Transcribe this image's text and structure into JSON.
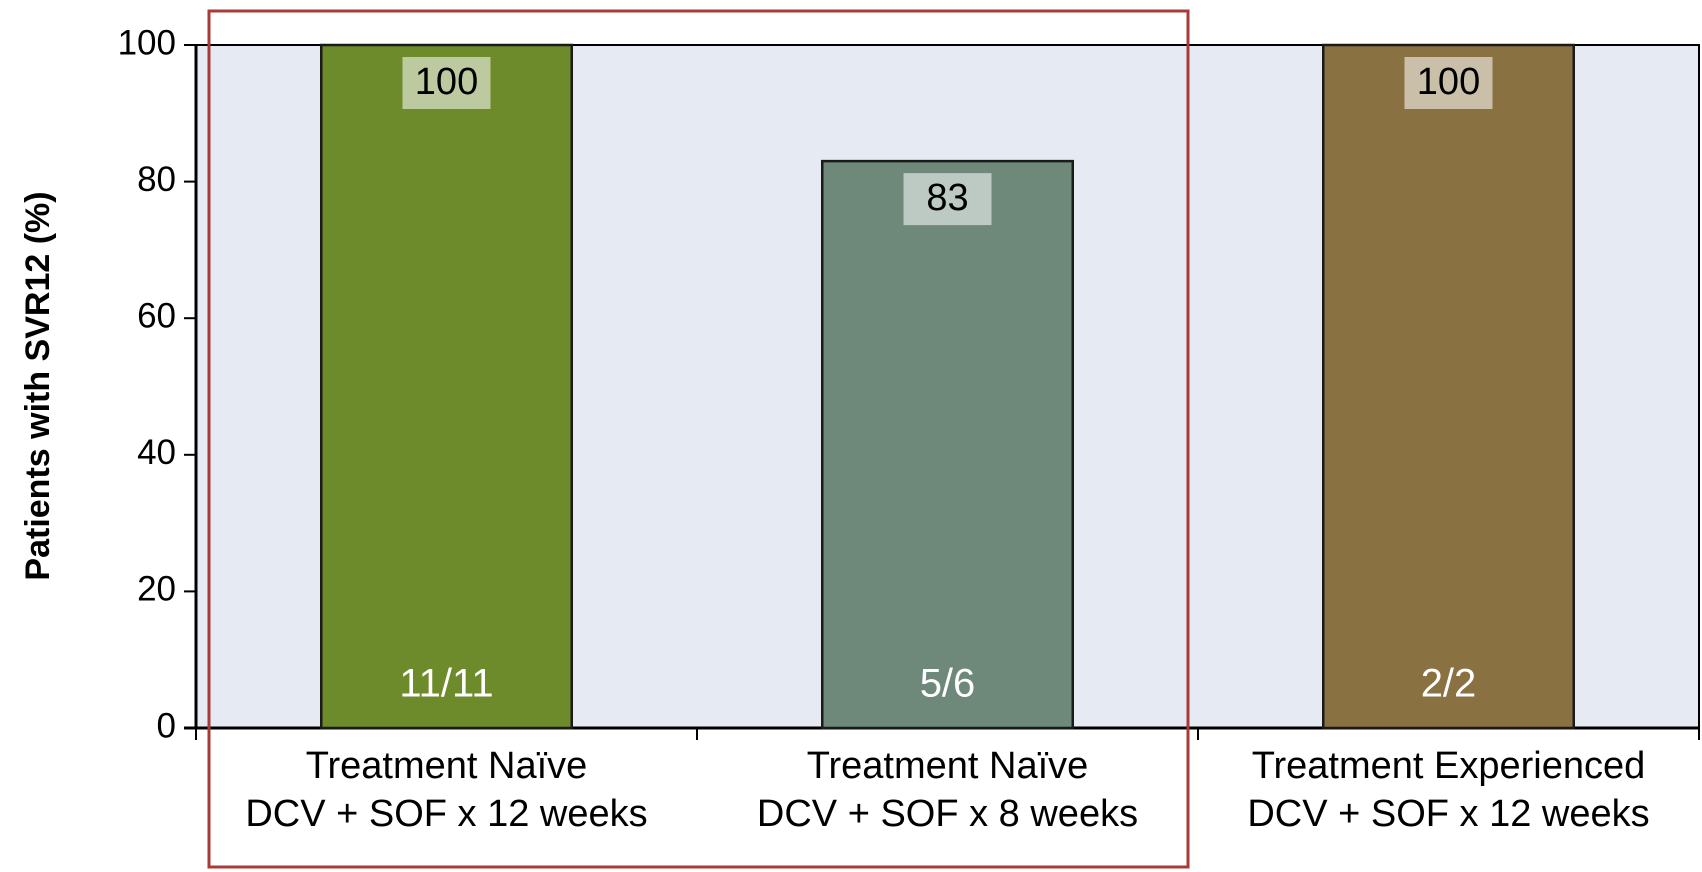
{
  "chart_data": {
    "type": "bar",
    "y_label": "Patients with SVR12 (%)",
    "categories": [
      [
        "Treatment Naïve",
        "DCV + SOF x 12 weeks"
      ],
      [
        "Treatment Naïve",
        "DCV + SOF x 8 weeks"
      ],
      [
        "Treatment Experienced",
        "DCV + SOF x 12 weeks"
      ]
    ],
    "values": [
      100,
      83,
      100
    ],
    "counts": [
      "11/11",
      "5/6",
      "2/2"
    ],
    "colors": [
      "#6e8b2b",
      "#6e887a",
      "#8a7142"
    ],
    "ylim": [
      0,
      100
    ],
    "yticks": [
      0,
      20,
      40,
      60,
      80,
      100
    ]
  }
}
